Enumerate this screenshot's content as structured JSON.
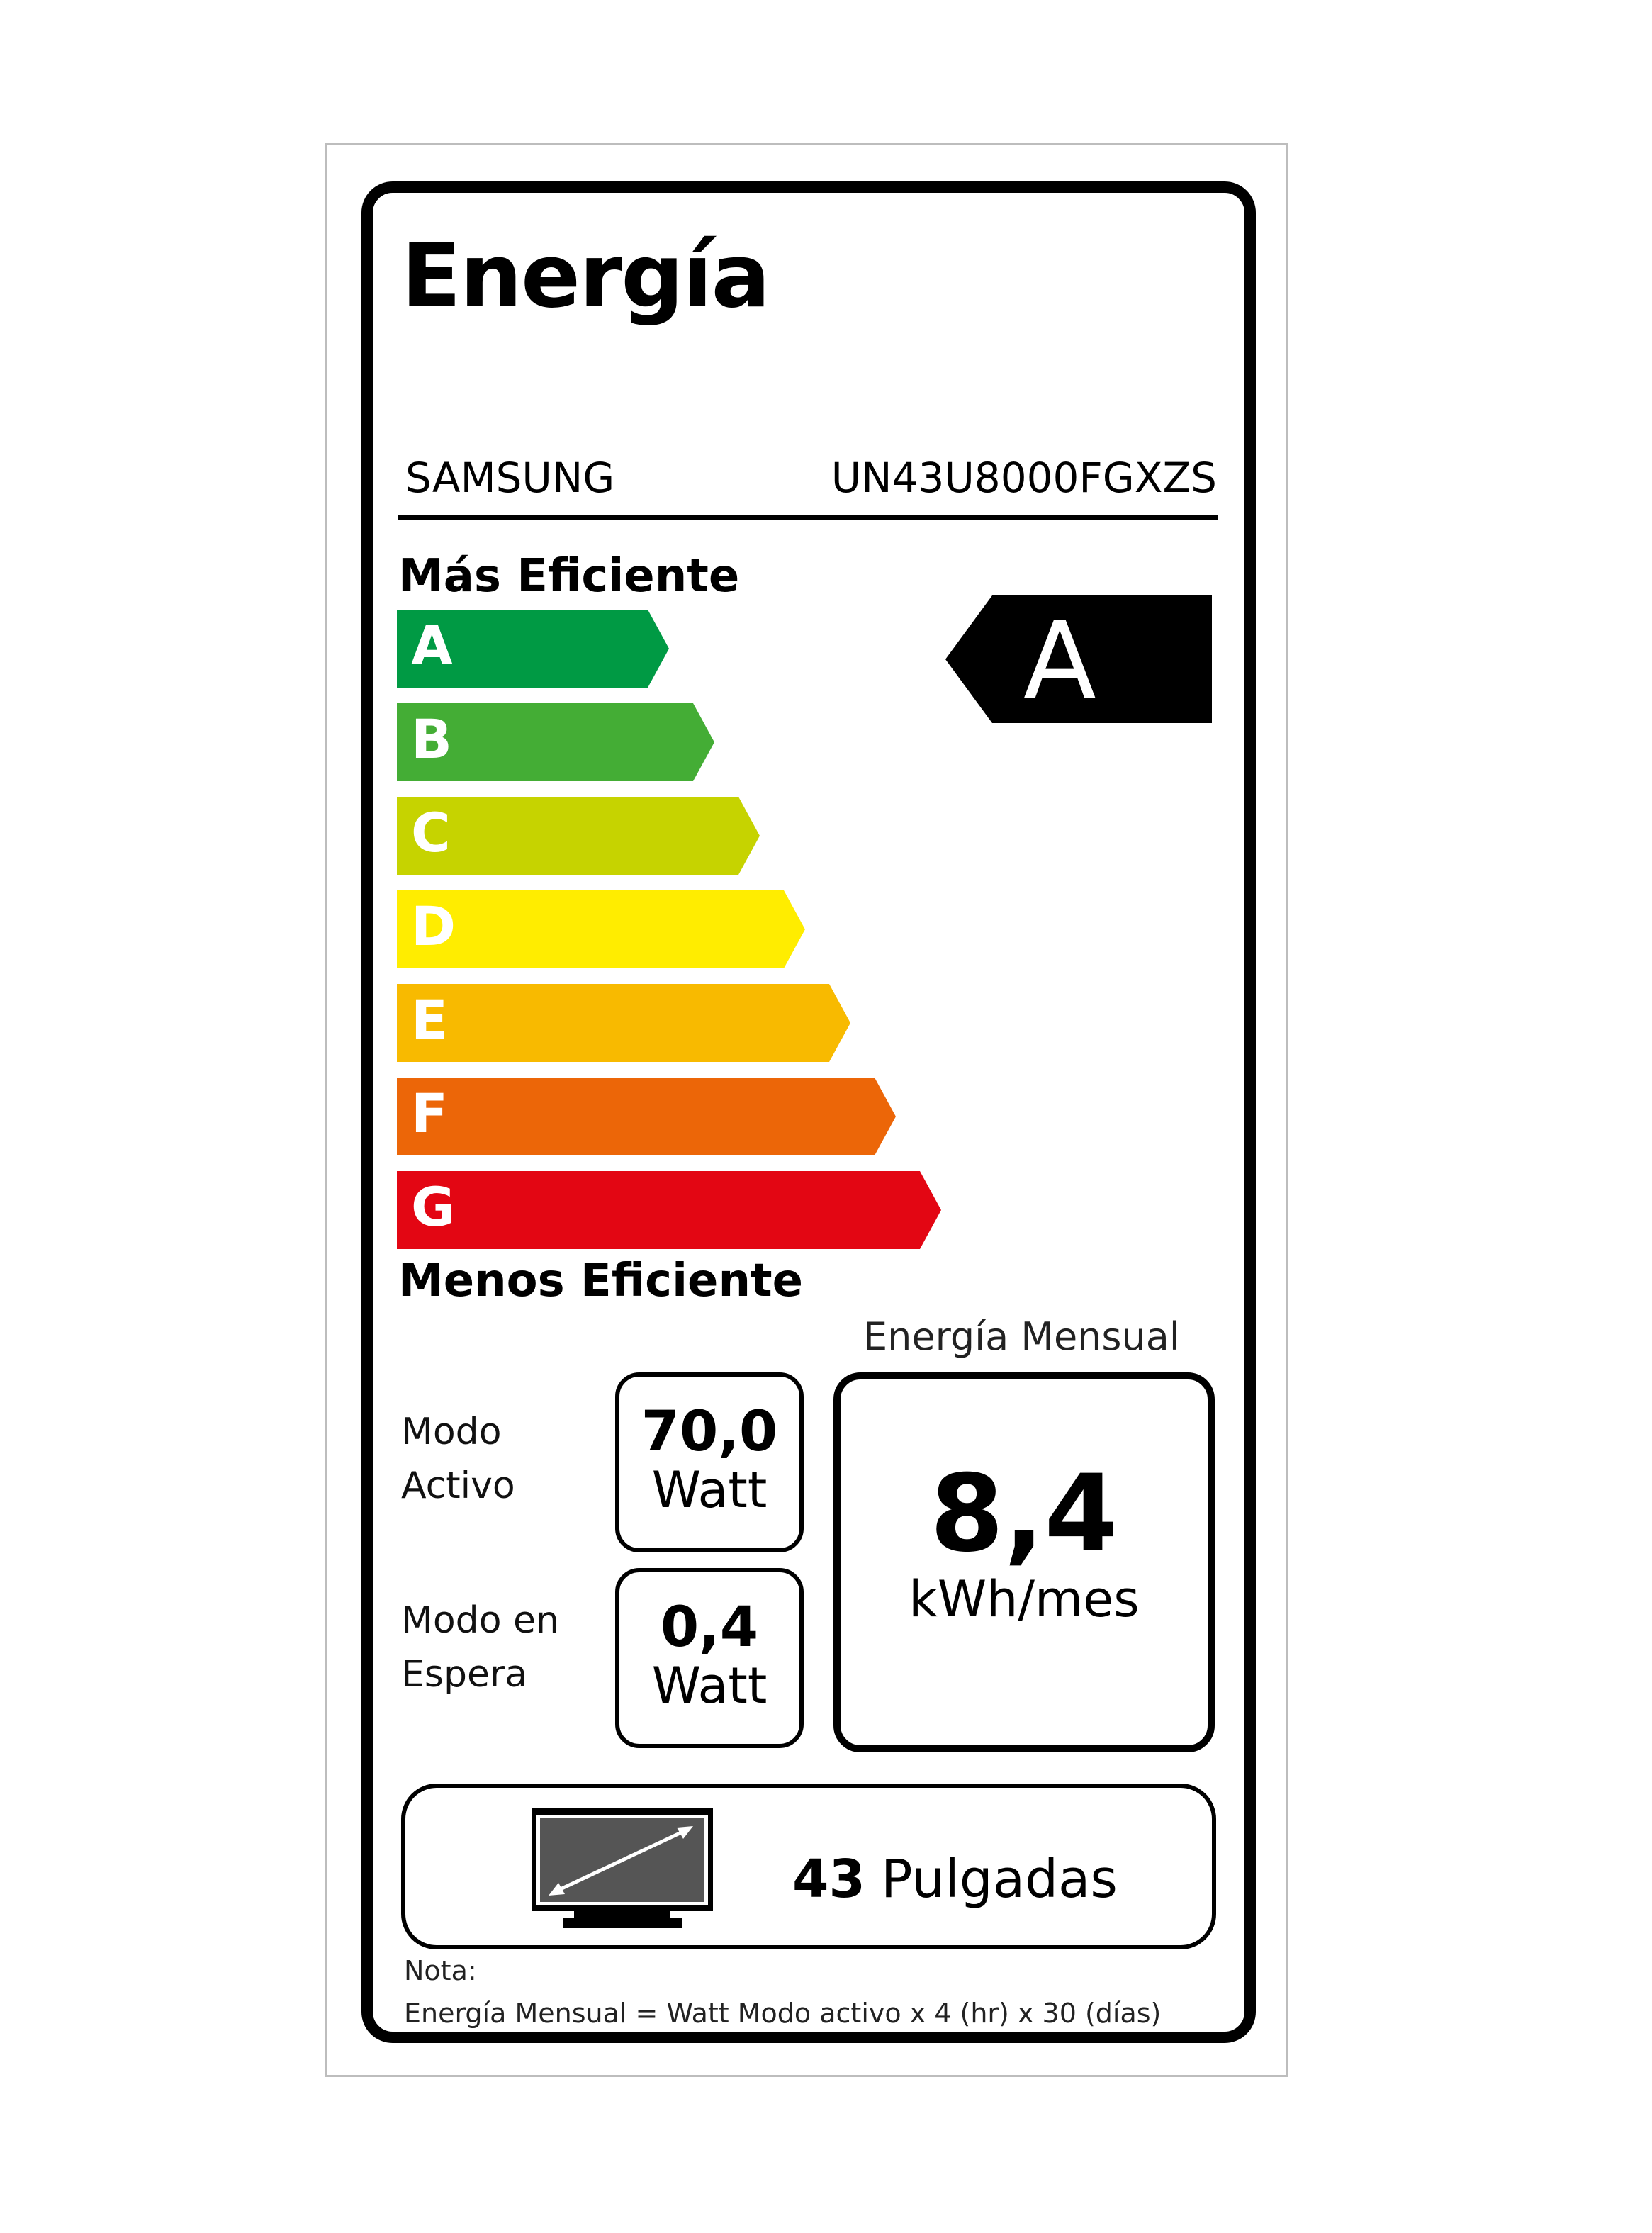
{
  "title": "Energía",
  "brand": "SAMSUNG",
  "model": "UN43U8000FGXZS",
  "scale_top_label": "Más Eficiente",
  "scale_bottom_label": "Menos Eficiente",
  "classes": [
    {
      "letter": "A",
      "color": "#009a44"
    },
    {
      "letter": "B",
      "color": "#44ad35"
    },
    {
      "letter": "C",
      "color": "#c6d300"
    },
    {
      "letter": "D",
      "color": "#ffed00"
    },
    {
      "letter": "E",
      "color": "#f8ba00"
    },
    {
      "letter": "F",
      "color": "#ec6608"
    },
    {
      "letter": "G",
      "color": "#e30613"
    }
  ],
  "rating": "A",
  "active_mode": {
    "label_line1": "Modo",
    "label_line2": "Activo",
    "value": "70,0",
    "unit": "Watt"
  },
  "standby_mode": {
    "label_line1": "Modo en",
    "label_line2": "Espera",
    "value": "0,4",
    "unit": "Watt"
  },
  "monthly_energy": {
    "label": "Energía Mensual",
    "value": "8,4",
    "unit": "kWh/mes"
  },
  "screen_size": {
    "value": "43",
    "unit": "Pulgadas",
    "icon": "tv-diagonal-icon"
  },
  "note": {
    "label": "Nota:",
    "formula": "Energía Mensual = Watt Modo activo x 4 (hr) x 30 (días)"
  }
}
